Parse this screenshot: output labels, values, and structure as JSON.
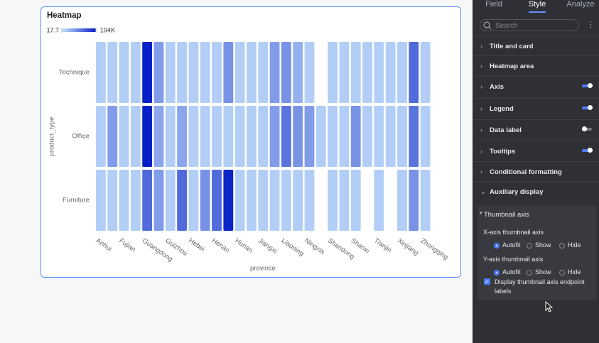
{
  "chart_data": {
    "type": "heatmap",
    "title": "Heatmap",
    "x_label": "province",
    "y_label": "product_type",
    "categories": [
      "Anhui",
      null,
      "Fujian",
      null,
      "Guangdong",
      null,
      "Guizhou",
      null,
      "Hebei",
      null,
      "Henan",
      null,
      "Hunan",
      null,
      "Jiangxi",
      null,
      "Liaoning",
      null,
      "Ningxia",
      null,
      "Shandong",
      null,
      "Shanxi",
      null,
      "Tianjin",
      null,
      "Xinjiang",
      null,
      "Zhongqing"
    ],
    "rows": [
      {
        "name": "Technique",
        "values": [
          20000,
          20000,
          20000,
          20000,
          194000,
          70000,
          20000,
          20000,
          20000,
          20000,
          20000,
          80000,
          20000,
          20000,
          20000,
          70000,
          80000,
          50000,
          20000,
          null,
          20000,
          20000,
          20000,
          20000,
          20000,
          20000,
          20000,
          120000,
          20000
        ]
      },
      {
        "name": "Office",
        "values": [
          20000,
          70000,
          20000,
          20000,
          194000,
          60000,
          20000,
          60000,
          20000,
          20000,
          20000,
          20000,
          20000,
          20000,
          20000,
          70000,
          110000,
          80000,
          70000,
          20000,
          20000,
          20000,
          80000,
          20000,
          20000,
          20000,
          20000,
          110000,
          20000
        ]
      },
      {
        "name": "Furniture",
        "values": [
          20000,
          20000,
          20000,
          20000,
          120000,
          70000,
          20000,
          120000,
          20000,
          80000,
          120000,
          190000,
          20000,
          20000,
          20000,
          20000,
          20000,
          20000,
          20000,
          null,
          20000,
          20000,
          20000,
          null,
          20000,
          null,
          20000,
          80000,
          20000
        ]
      }
    ],
    "colorbar_lim": [
      17.7,
      194000
    ],
    "colorbar_ticks": [
      17.7,
      {
        "value": 194000,
        "label": "194K"
      }
    ],
    "color_range": [
      "#c6e2fb",
      "#0820c8"
    ]
  },
  "panel": {
    "tabs": [
      "Field",
      "Style",
      "Analyze"
    ],
    "active_tab": "Style",
    "search_placeholder": "Search",
    "sections": [
      {
        "label": "Title and card"
      },
      {
        "label": "Heatmap area"
      },
      {
        "label": "Axis",
        "toggle": true
      },
      {
        "label": "Legend",
        "toggle": true
      },
      {
        "label": "Data label",
        "toggle": false
      },
      {
        "label": "Tooltips",
        "toggle": true
      },
      {
        "label": "Conditional formatting"
      },
      {
        "label": "Auxiliary display",
        "expanded": true
      }
    ],
    "subsection": "Thumbnail axis",
    "groups": [
      {
        "label": "X-axis thumbnail axis",
        "options": [
          "Autofit",
          "Show",
          "Hide"
        ],
        "selected": "Autofit"
      },
      {
        "label": "Y-axis thumbnail axis",
        "options": [
          "Autofit",
          "Show",
          "Hide"
        ],
        "selected": "Autofit"
      }
    ],
    "checkbox": {
      "label": "Display thumbnail axis endpoint labels",
      "checked": true
    }
  }
}
